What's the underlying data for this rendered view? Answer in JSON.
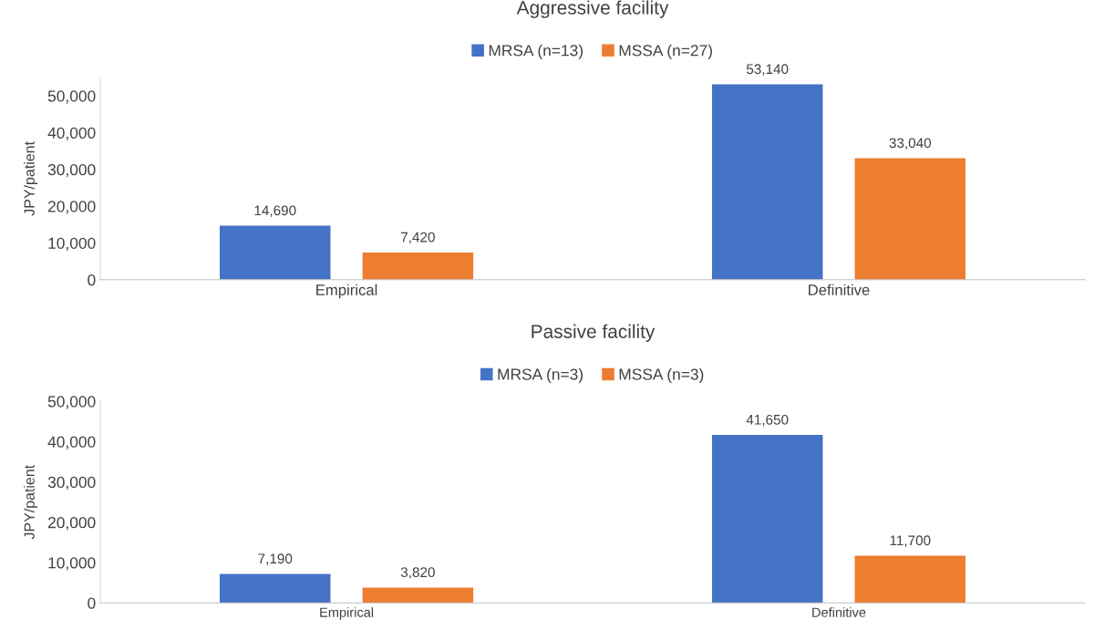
{
  "chart_data": [
    {
      "type": "bar",
      "title": "Aggressive facility",
      "ylabel": "JPY/patient",
      "categories": [
        "Empirical",
        "Definitive"
      ],
      "series": [
        {
          "name": "MRSA (n=13)",
          "color": "#4472c4",
          "values": [
            14690,
            53140
          ],
          "value_labels": [
            "14,690",
            "53,140"
          ]
        },
        {
          "name": "MSSA (n=27)",
          "color": "#ed7d31",
          "values": [
            7420,
            33040
          ],
          "value_labels": [
            "7,420",
            "33,040"
          ]
        }
      ],
      "ylim": [
        0,
        55000
      ],
      "yticks": [
        0,
        {
          "value": 10000,
          "label": "10,000"
        },
        {
          "value": 20000,
          "label": "20,000"
        },
        {
          "value": 30000,
          "label": "30,000"
        },
        {
          "value": 40000,
          "label": "40,000"
        },
        {
          "value": 50000,
          "label": "50,000"
        }
      ],
      "grid": false,
      "legend": "top"
    },
    {
      "type": "bar",
      "title": "Passive facility",
      "ylabel": "JPY/patient",
      "categories": [
        "Empirical",
        "Definitive"
      ],
      "series": [
        {
          "name": "MRSA (n=3)",
          "color": "#4472c4",
          "values": [
            7190,
            41650
          ],
          "value_labels": [
            "7,190",
            "41,650"
          ]
        },
        {
          "name": "MSSA (n=3)",
          "color": "#ed7d31",
          "values": [
            3820,
            11700
          ],
          "value_labels": [
            "3,820",
            "11,700"
          ]
        }
      ],
      "ylim": [
        0,
        50000
      ],
      "yticks": [
        0,
        {
          "value": 10000,
          "label": "10,000"
        },
        {
          "value": 20000,
          "label": "20,000"
        },
        {
          "value": 30000,
          "label": "30,000"
        },
        {
          "value": 40000,
          "label": "40,000"
        },
        {
          "value": 50000,
          "label": "50,000"
        }
      ],
      "grid": false,
      "legend": "top"
    }
  ]
}
